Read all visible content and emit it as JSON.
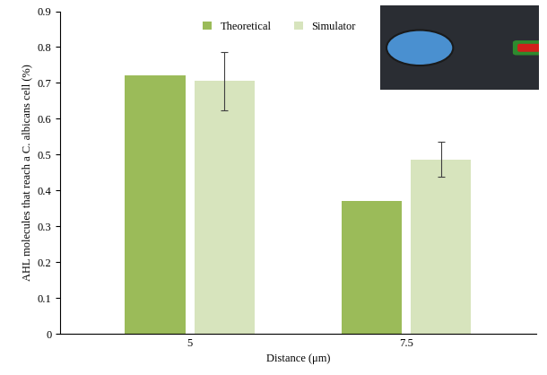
{
  "chart_data": {
    "type": "bar",
    "x_label": "Distance (μm)",
    "y_label": "AHL molecules that reach a C. albicans cell (%)",
    "categories": [
      "5",
      "7.5"
    ],
    "series": [
      {
        "name": "Theoretical",
        "color": "#9bbb59",
        "values": [
          0.72,
          0.37
        ]
      },
      {
        "name": "Simulator",
        "color": "#d7e4bd",
        "values": [
          0.705,
          0.487
        ],
        "errors": [
          0.082,
          0.05
        ]
      }
    ],
    "ylim": [
      0,
      0.9
    ],
    "yticks": [
      0,
      0.1,
      0.2,
      0.3,
      0.4,
      0.5,
      0.6,
      0.7,
      0.8,
      0.9
    ],
    "legend": "upper center",
    "grid": false
  }
}
